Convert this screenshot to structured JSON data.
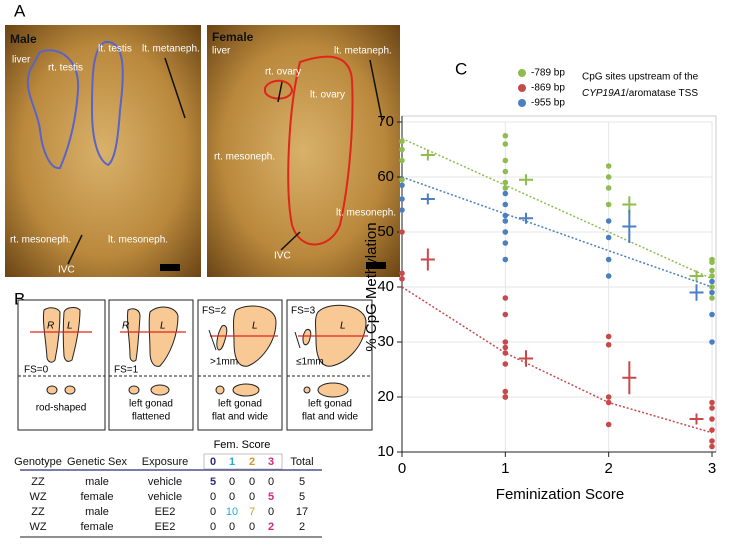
{
  "panel_labels": [
    "A",
    "B",
    "C"
  ],
  "panel_a": {
    "male": {
      "title": "Male",
      "labels": [
        "liver",
        "rt. testis",
        "lt. testis",
        "lt. metaneph.",
        "rt. mesoneph.",
        "lt. mesoneph.",
        "IVC"
      ]
    },
    "female": {
      "title": "Female",
      "labels": [
        "liver",
        "rt. ovary",
        "lt. ovary",
        "lt. metaneph.",
        "rt. mesoneph.",
        "lt. mesoneph.",
        "IVC"
      ]
    }
  },
  "panel_b": {
    "schemes": [
      {
        "score": "FS=0",
        "sides": [
          "R",
          "L"
        ],
        "desc": [
          "rod-shaped"
        ]
      },
      {
        "score": "FS=1",
        "sides": [
          "R",
          "L"
        ],
        "desc": [
          "left gonad",
          "flattened"
        ]
      },
      {
        "score": "FS=2",
        "sides": [
          "L"
        ],
        "size": ">1mm",
        "desc": [
          "left gonad",
          "flat and wide"
        ]
      },
      {
        "score": "FS=3",
        "sides": [
          "L"
        ],
        "size": "≤1mm",
        "desc": [
          "left gonad",
          "flat and wide"
        ]
      }
    ],
    "table": {
      "group_header": "Fem. Score",
      "header": [
        "Genotype",
        "Genetic Sex",
        "Exposure",
        "0",
        "1",
        "2",
        "3",
        "Total"
      ],
      "rows": [
        [
          "ZZ",
          "male",
          "vehicle",
          5,
          0,
          0,
          0,
          5
        ],
        [
          "WZ",
          "female",
          "vehicle",
          0,
          0,
          0,
          5,
          5
        ],
        [
          "ZZ",
          "male",
          "EE2",
          0,
          10,
          7,
          0,
          17
        ],
        [
          "WZ",
          "female",
          "EE2",
          0,
          0,
          0,
          2,
          2
        ]
      ]
    }
  },
  "chart_data": {
    "type": "scatter",
    "annotation": [
      "CpG sites upstream of the",
      "CYP19A1",
      "/aromatase TSS"
    ],
    "x_label": "Feminization Score",
    "y_label": "% CpG Methylation",
    "xlim": [
      0,
      3
    ],
    "ylim": [
      10,
      70
    ],
    "xticks": [
      0,
      1,
      2,
      3
    ],
    "yticks": [
      10,
      20,
      30,
      40,
      50,
      60,
      70
    ],
    "grid": true,
    "series": [
      {
        "name": "-789 bp",
        "color": "#8fbc4f",
        "x": [
          0,
          0,
          0,
          0,
          1,
          1,
          1,
          1,
          1,
          1,
          2,
          2,
          2,
          2,
          3,
          3,
          3,
          3,
          3,
          3
        ],
        "values": [
          66.5,
          65,
          63,
          59.5,
          67.5,
          66,
          63,
          61,
          59,
          58,
          62,
          60,
          58,
          55,
          45,
          44.5,
          43,
          42,
          40,
          38
        ],
        "means": {
          "x": [
            0.25,
            1.2,
            2.2,
            2.85
          ],
          "values": [
            64,
            59.5,
            55,
            42
          ],
          "errors": [
            1,
            1,
            1.5,
            1
          ]
        },
        "trend": {
          "x": [
            0,
            1,
            2,
            3
          ],
          "values": [
            67,
            58.5,
            50,
            41.5
          ]
        }
      },
      {
        "name": "-869 bp",
        "color": "#c8494a",
        "x": [
          0,
          0,
          0,
          1,
          1,
          1,
          1,
          1,
          1,
          1,
          1,
          1,
          2,
          2,
          2,
          2,
          2,
          3,
          3,
          3,
          3,
          3,
          3
        ],
        "values": [
          50,
          42.5,
          41.5,
          38,
          35,
          30,
          29,
          28,
          26,
          21,
          20,
          20,
          31,
          29.5,
          20,
          19,
          15,
          19,
          18,
          16,
          14,
          12,
          11
        ],
        "means": {
          "x": [
            0.25,
            1.2,
            2.2,
            2.85
          ],
          "values": [
            45,
            27,
            23.5,
            16
          ],
          "errors": [
            2,
            1.5,
            3,
            1
          ]
        },
        "trend": {
          "x": [
            0,
            1,
            2,
            3
          ],
          "values": [
            40,
            28,
            19,
            13.5
          ]
        }
      },
      {
        "name": "-955 bp",
        "color": "#4a7fc1",
        "x": [
          0,
          0,
          0,
          1,
          1,
          1,
          1,
          1,
          1,
          1,
          2,
          2,
          2,
          2,
          3,
          3,
          3,
          3
        ],
        "values": [
          58.5,
          56,
          54,
          57,
          55,
          53,
          52,
          50,
          48,
          45,
          52,
          49,
          45,
          42,
          41,
          39,
          35,
          30
        ],
        "means": {
          "x": [
            0.25,
            1.2,
            2.2,
            2.85
          ],
          "values": [
            56,
            52.5,
            51,
            39
          ],
          "errors": [
            1,
            1,
            3,
            1.5
          ]
        },
        "trend": {
          "x": [
            0,
            1,
            2,
            3
          ],
          "values": [
            60,
            53.3,
            46.6,
            40
          ]
        }
      }
    ]
  }
}
